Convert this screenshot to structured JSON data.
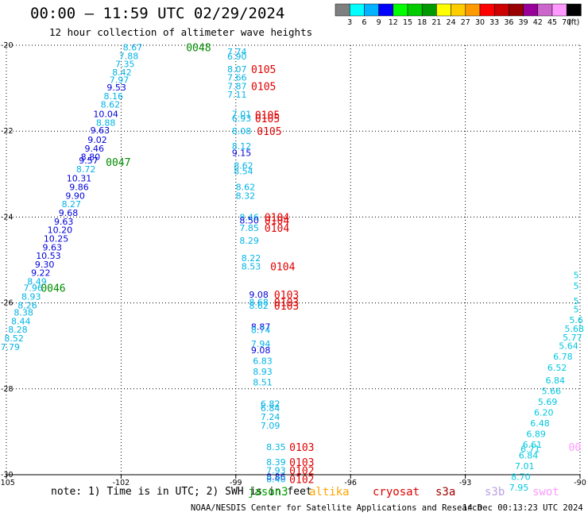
{
  "title": "00:00 – 11:59 UTC 02/29/2024",
  "subtitle": "12 hour collection of altimeter wave heights",
  "note": "note: 1) Time is in UTC; 2) SWH is in feet",
  "footer": {
    "org": "NOAA/NESDIS Center for Satellite Applications and Research",
    "timestamp": "14 Dec 00:13:23 UTC 2024"
  },
  "colorbar": {
    "unit": "(ft)",
    "labels": [
      "3",
      "6",
      "9",
      "12",
      "15",
      "18",
      "21",
      "24",
      "27",
      "30",
      "33",
      "36",
      "39",
      "42",
      "45",
      "70"
    ],
    "colors": [
      "#7f7f7f",
      "#00ffff",
      "#00b2ff",
      "#0000ff",
      "#00ff00",
      "#00cc00",
      "#009900",
      "#ffff00",
      "#ffcc00",
      "#ff9900",
      "#ff0000",
      "#cc0000",
      "#990000",
      "#990099",
      "#cc66cc",
      "#ff99ff",
      "#000000"
    ]
  },
  "legend": [
    {
      "name": "jason3",
      "color": "#00a000"
    },
    {
      "name": "altika",
      "color": "#ffa500"
    },
    {
      "name": "cryosat",
      "color": "#e00000"
    },
    {
      "name": "s3a",
      "color": "#a00000"
    },
    {
      "name": "s3b",
      "color": "#b8a0e0"
    },
    {
      "name": "swot",
      "color": "#ff9aff"
    }
  ],
  "chart_data": {
    "type": "scatter",
    "title": "00:00 – 11:59 UTC 02/29/2024",
    "subtitle": "12 hour collection of altimeter wave heights",
    "xlim": [
      -105,
      -90
    ],
    "ylim": [
      -30,
      -20
    ],
    "xticks": [
      "-105",
      "-102",
      "-99",
      "-96",
      "-93",
      "-90"
    ],
    "yticks": [
      "-20",
      "-22",
      "-24",
      "-26",
      "-28",
      "-30"
    ],
    "grid": true,
    "colors": {
      "cyan": "#00b4e6",
      "blue": "#0000dd",
      "teal": "#00c8e0",
      "green": "#008c00",
      "red": "#e00000",
      "swot": "#ff9aff"
    },
    "points": [
      {
        "x": -101.7,
        "y": -20.05,
        "label": "8.67",
        "color": "cyan"
      },
      {
        "x": -101.8,
        "y": -20.25,
        "label": "7.88",
        "color": "cyan"
      },
      {
        "x": -101.9,
        "y": -20.43,
        "label": "7.35",
        "color": "cyan"
      },
      {
        "x": -101.98,
        "y": -20.63,
        "label": "8.42",
        "color": "cyan"
      },
      {
        "x": -102.05,
        "y": -20.8,
        "label": "7.97",
        "color": "cyan"
      },
      {
        "x": -102.12,
        "y": -20.98,
        "label": "9.53",
        "color": "blue"
      },
      {
        "x": -102.2,
        "y": -21.18,
        "label": "8.16",
        "color": "cyan"
      },
      {
        "x": -102.28,
        "y": -21.38,
        "label": "8.62",
        "color": "cyan"
      },
      {
        "x": -102.4,
        "y": -21.6,
        "label": "10.04",
        "color": "blue"
      },
      {
        "x": -102.4,
        "y": -21.8,
        "label": "8.88",
        "color": "cyan"
      },
      {
        "x": -102.55,
        "y": -21.98,
        "label": "9.63",
        "color": "blue"
      },
      {
        "x": -102.62,
        "y": -22.2,
        "label": "9.02",
        "color": "blue"
      },
      {
        "x": -102.7,
        "y": -22.4,
        "label": "9.46",
        "color": "blue"
      },
      {
        "x": -102.8,
        "y": -22.6,
        "label": "8.80",
        "color": "blue"
      },
      {
        "x": -102.85,
        "y": -22.68,
        "label": "9.57",
        "color": "blue"
      },
      {
        "x": -102.92,
        "y": -22.88,
        "label": "8.72",
        "color": "cyan"
      },
      {
        "x": -103.1,
        "y": -23.1,
        "label": "10.31",
        "color": "blue"
      },
      {
        "x": -103.1,
        "y": -23.3,
        "label": "9.86",
        "color": "blue"
      },
      {
        "x": -103.2,
        "y": -23.5,
        "label": "9.90",
        "color": "blue"
      },
      {
        "x": -103.3,
        "y": -23.7,
        "label": "8.27",
        "color": "cyan"
      },
      {
        "x": -103.38,
        "y": -23.9,
        "label": "9.68",
        "color": "blue"
      },
      {
        "x": -103.5,
        "y": -24.1,
        "label": "9.63",
        "color": "blue"
      },
      {
        "x": -103.6,
        "y": -24.3,
        "label": "10.20",
        "color": "blue"
      },
      {
        "x": -103.7,
        "y": -24.5,
        "label": "10.25",
        "color": "blue"
      },
      {
        "x": -103.8,
        "y": -24.7,
        "label": "9.63",
        "color": "blue"
      },
      {
        "x": -103.9,
        "y": -24.9,
        "label": "10.53",
        "color": "blue"
      },
      {
        "x": -104.0,
        "y": -25.1,
        "label": "9.30",
        "color": "blue"
      },
      {
        "x": -104.1,
        "y": -25.3,
        "label": "9.22",
        "color": "blue"
      },
      {
        "x": -104.2,
        "y": -25.5,
        "label": "8.49",
        "color": "cyan"
      },
      {
        "x": -104.3,
        "y": -25.65,
        "label": "7.96",
        "color": "cyan"
      },
      {
        "x": -104.35,
        "y": -25.85,
        "label": "8.93",
        "color": "cyan"
      },
      {
        "x": -104.45,
        "y": -26.05,
        "label": "8.26",
        "color": "cyan"
      },
      {
        "x": -104.55,
        "y": -26.22,
        "label": "8.38",
        "color": "cyan"
      },
      {
        "x": -104.62,
        "y": -26.42,
        "label": "8.44",
        "color": "cyan"
      },
      {
        "x": -104.7,
        "y": -26.62,
        "label": "8.28",
        "color": "cyan"
      },
      {
        "x": -104.8,
        "y": -26.82,
        "label": "8.52",
        "color": "cyan"
      },
      {
        "x": -104.9,
        "y": -27.02,
        "label": "7.79",
        "color": "cyan"
      },
      {
        "x": -98.97,
        "y": -20.15,
        "label": "7.74",
        "color": "cyan"
      },
      {
        "x": -98.97,
        "y": -20.26,
        "label": "6.90",
        "color": "cyan"
      },
      {
        "x": -98.97,
        "y": -20.55,
        "label": "8.07",
        "color": "cyan"
      },
      {
        "x": -98.97,
        "y": -20.75,
        "label": "7.66",
        "color": "cyan"
      },
      {
        "x": -98.97,
        "y": -20.95,
        "label": "7.87",
        "color": "cyan"
      },
      {
        "x": -98.97,
        "y": -21.15,
        "label": "7.11",
        "color": "cyan"
      },
      {
        "x": -98.85,
        "y": -21.6,
        "label": "7.01",
        "color": "cyan"
      },
      {
        "x": -98.85,
        "y": -21.7,
        "label": "6.93",
        "color": "cyan"
      },
      {
        "x": -98.85,
        "y": -22.0,
        "label": "8.08",
        "color": "cyan"
      },
      {
        "x": -98.85,
        "y": -22.35,
        "label": "8.12",
        "color": "cyan"
      },
      {
        "x": -98.85,
        "y": -22.5,
        "label": "9.15",
        "color": "blue"
      },
      {
        "x": -98.8,
        "y": -22.8,
        "label": "8.62",
        "color": "cyan"
      },
      {
        "x": -98.8,
        "y": -22.93,
        "label": "8.54",
        "color": "cyan"
      },
      {
        "x": -98.75,
        "y": -23.3,
        "label": "8.62",
        "color": "cyan"
      },
      {
        "x": -98.75,
        "y": -23.5,
        "label": "8.32",
        "color": "cyan"
      },
      {
        "x": -98.65,
        "y": -24.0,
        "label": "8.46",
        "color": "cyan"
      },
      {
        "x": -98.65,
        "y": -24.08,
        "label": "8.50",
        "color": "blue"
      },
      {
        "x": -98.65,
        "y": -24.25,
        "label": "7.85",
        "color": "cyan"
      },
      {
        "x": -98.65,
        "y": -24.55,
        "label": "8.29",
        "color": "cyan"
      },
      {
        "x": -98.6,
        "y": -24.95,
        "label": "8.22",
        "color": "cyan"
      },
      {
        "x": -98.6,
        "y": -25.15,
        "label": "8.53",
        "color": "cyan"
      },
      {
        "x": -98.4,
        "y": -25.8,
        "label": "9.08",
        "color": "blue"
      },
      {
        "x": -98.4,
        "y": -25.98,
        "label": "8.68",
        "color": "cyan"
      },
      {
        "x": -98.4,
        "y": -26.06,
        "label": "8.62",
        "color": "cyan"
      },
      {
        "x": -98.35,
        "y": -26.55,
        "label": "8.87",
        "color": "blue"
      },
      {
        "x": -98.35,
        "y": -26.63,
        "label": "8.74",
        "color": "cyan"
      },
      {
        "x": -98.35,
        "y": -26.95,
        "label": "7.94",
        "color": "cyan"
      },
      {
        "x": -98.35,
        "y": -27.1,
        "label": "9.08",
        "color": "blue"
      },
      {
        "x": -98.3,
        "y": -27.35,
        "label": "6.83",
        "color": "cyan"
      },
      {
        "x": -98.3,
        "y": -27.6,
        "label": "8.93",
        "color": "cyan"
      },
      {
        "x": -98.3,
        "y": -27.85,
        "label": "8.51",
        "color": "cyan"
      },
      {
        "x": -98.1,
        "y": -28.35,
        "label": "6.82",
        "color": "cyan"
      },
      {
        "x": -98.1,
        "y": -28.45,
        "label": "6.84",
        "color": "cyan"
      },
      {
        "x": -98.1,
        "y": -28.65,
        "label": "7.24",
        "color": "cyan"
      },
      {
        "x": -98.1,
        "y": -28.85,
        "label": "7.09",
        "color": "cyan"
      },
      {
        "x": -97.95,
        "y": -29.35,
        "label": "8.35",
        "color": "cyan"
      },
      {
        "x": -97.95,
        "y": -29.7,
        "label": "8.39",
        "color": "cyan"
      },
      {
        "x": -97.95,
        "y": -29.9,
        "label": "7.93",
        "color": "cyan"
      },
      {
        "x": -97.95,
        "y": -30.05,
        "label": "8.86",
        "color": "blue"
      },
      {
        "x": -97.95,
        "y": -30.1,
        "label": "8.40",
        "color": "cyan"
      },
      {
        "x": -90.1,
        "y": -25.35,
        "label": "5",
        "color": "teal"
      },
      {
        "x": -90.1,
        "y": -25.6,
        "label": "5",
        "color": "teal"
      },
      {
        "x": -90.1,
        "y": -25.95,
        "label": "5",
        "color": "teal"
      },
      {
        "x": -90.1,
        "y": -26.15,
        "label": "5",
        "color": "teal"
      },
      {
        "x": -90.1,
        "y": -26.4,
        "label": "5.6",
        "color": "teal"
      },
      {
        "x": -90.15,
        "y": -26.6,
        "label": "5.68",
        "color": "teal"
      },
      {
        "x": -90.2,
        "y": -26.8,
        "label": "5.77",
        "color": "teal"
      },
      {
        "x": -90.3,
        "y": -27.0,
        "label": "5.64",
        "color": "teal"
      },
      {
        "x": -90.45,
        "y": -27.25,
        "label": "6.78",
        "color": "teal"
      },
      {
        "x": -90.6,
        "y": -27.5,
        "label": "6.52",
        "color": "teal"
      },
      {
        "x": -90.65,
        "y": -27.8,
        "label": "6.84",
        "color": "teal"
      },
      {
        "x": -90.75,
        "y": -28.05,
        "label": "5.66",
        "color": "teal"
      },
      {
        "x": -90.85,
        "y": -28.3,
        "label": "5.69",
        "color": "teal"
      },
      {
        "x": -90.95,
        "y": -28.55,
        "label": "6.20",
        "color": "teal"
      },
      {
        "x": -91.05,
        "y": -28.8,
        "label": "6.48",
        "color": "teal"
      },
      {
        "x": -91.15,
        "y": -29.05,
        "label": "6.89",
        "color": "teal"
      },
      {
        "x": -91.25,
        "y": -29.3,
        "label": "6.61",
        "color": "teal"
      },
      {
        "x": -91.3,
        "y": -29.4,
        "label": "6.71",
        "color": "teal"
      },
      {
        "x": -91.35,
        "y": -29.55,
        "label": "6.84",
        "color": "teal"
      },
      {
        "x": -91.45,
        "y": -29.8,
        "label": "7.01",
        "color": "teal"
      },
      {
        "x": -91.55,
        "y": -30.05,
        "label": "8.70",
        "color": "teal"
      },
      {
        "x": -91.6,
        "y": -30.3,
        "label": "7.95",
        "color": "teal"
      }
    ],
    "tracks": [
      {
        "x": -100.3,
        "y": -20.05,
        "label": "0048",
        "color": "green"
      },
      {
        "x": -102.4,
        "y": -22.72,
        "label": "0047",
        "color": "green"
      },
      {
        "x": -104.1,
        "y": -25.65,
        "label": "0046",
        "color": "green"
      },
      {
        "x": -98.6,
        "y": -20.55,
        "label": "0105",
        "color": "red"
      },
      {
        "x": -98.6,
        "y": -20.95,
        "label": "0105",
        "color": "red"
      },
      {
        "x": -98.5,
        "y": -21.62,
        "label": "0105",
        "color": "red"
      },
      {
        "x": -98.5,
        "y": -21.7,
        "label": "0105",
        "color": "red"
      },
      {
        "x": -98.45,
        "y": -22.0,
        "label": "0105",
        "color": "red"
      },
      {
        "x": -98.25,
        "y": -24.0,
        "label": "0104",
        "color": "red"
      },
      {
        "x": -98.25,
        "y": -24.08,
        "label": "0104",
        "color": "red"
      },
      {
        "x": -98.25,
        "y": -24.25,
        "label": "0104",
        "color": "red"
      },
      {
        "x": -98.1,
        "y": -25.15,
        "label": "0104",
        "color": "red"
      },
      {
        "x": -98.0,
        "y": -25.8,
        "label": "0103",
        "color": "red"
      },
      {
        "x": -98.0,
        "y": -25.98,
        "label": "0103",
        "color": "red"
      },
      {
        "x": -98.0,
        "y": -26.06,
        "label": "0103",
        "color": "red"
      },
      {
        "x": -97.6,
        "y": -29.35,
        "label": "0103",
        "color": "red"
      },
      {
        "x": -97.6,
        "y": -29.7,
        "label": "0103",
        "color": "red"
      },
      {
        "x": -97.6,
        "y": -29.9,
        "label": "0102",
        "color": "red"
      },
      {
        "x": -97.6,
        "y": -30.1,
        "label": "0102",
        "color": "red"
      },
      {
        "x": -90.3,
        "y": -29.35,
        "label": "00",
        "color": "swot"
      }
    ]
  }
}
